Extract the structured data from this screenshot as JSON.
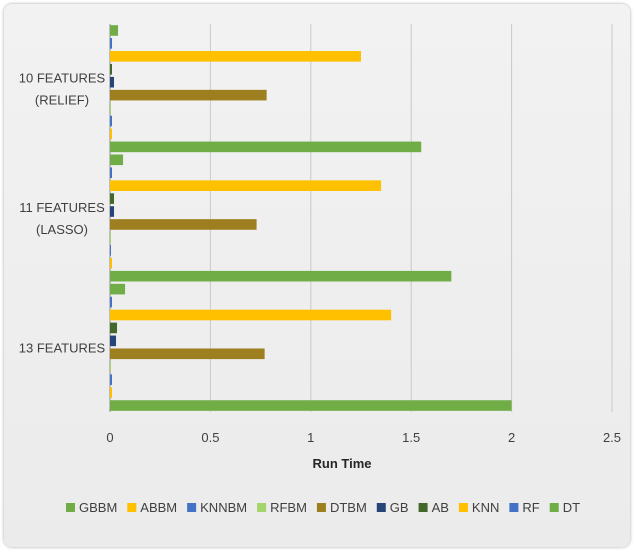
{
  "chart_data": {
    "type": "bar",
    "orientation": "horizontal",
    "categories": [
      "10 FEATURES (RELIEF)",
      "11 FEATURES (LASSO)",
      "13 FEATURES"
    ],
    "category_lines": [
      [
        "10 FEATURES",
        "(RELIEF)"
      ],
      [
        "11 FEATURES",
        "(LASSO)"
      ],
      [
        "13 FEATURES"
      ]
    ],
    "xlabel": "Run Time",
    "ylabel": "",
    "title": "",
    "xlim": [
      0,
      2.5
    ],
    "x_ticks": [
      "0",
      "0.5",
      "1",
      "1.5",
      "2",
      "2.5"
    ],
    "grid": "vertical",
    "legend_position": "bottom",
    "series": [
      {
        "name": "GBBM",
        "color": "#70ad47",
        "values": [
          1.55,
          1.7,
          2.0
        ]
      },
      {
        "name": "ABBM",
        "color": "#ffc000",
        "values": [
          0.01,
          0.01,
          0.01
        ]
      },
      {
        "name": "KNNBM",
        "color": "#4472c4",
        "values": [
          0.01,
          0.005,
          0.01
        ]
      },
      {
        "name": "RFBM",
        "color": "#a5d46a",
        "values": [
          0.005,
          0.005,
          0.005
        ]
      },
      {
        "name": "DTBM",
        "color": "#9e7f1f",
        "values": [
          0.78,
          0.73,
          0.77
        ]
      },
      {
        "name": "GB",
        "color": "#264478",
        "values": [
          0.02,
          0.02,
          0.03
        ]
      },
      {
        "name": "AB",
        "color": "#43682b",
        "values": [
          0.01,
          0.02,
          0.035
        ]
      },
      {
        "name": "KNN",
        "color": "#ffc000",
        "values": [
          1.25,
          1.35,
          1.4
        ]
      },
      {
        "name": "RF",
        "color": "#4472c4",
        "values": [
          0.01,
          0.01,
          0.01
        ]
      },
      {
        "name": "DT",
        "color": "#70ad47",
        "values": [
          0.04,
          0.065,
          0.075
        ]
      }
    ]
  }
}
